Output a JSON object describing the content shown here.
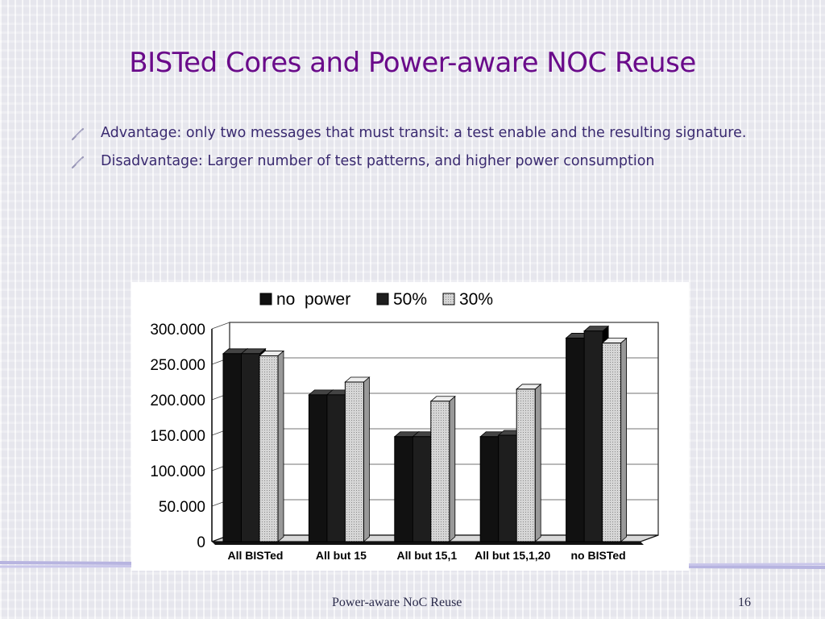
{
  "slide": {
    "title": "BISTed Cores and Power-aware NOC Reuse",
    "bullets": [
      "Advantage: only two messages that must transit: a test enable and the resulting signature.",
      "Disadvantage: Larger number of test patterns, and higher power consumption"
    ],
    "footer": {
      "center": "Power-aware NoC Reuse",
      "page": "16"
    },
    "colors": {
      "title": "#6a0b8a",
      "text": "#3a2a70",
      "rule": "#b7b4e0"
    }
  },
  "chart_data": {
    "type": "bar",
    "categories": [
      "All BISTed",
      "All but 15",
      "All but 15,1",
      "All but 15,1,20",
      "no BISTed"
    ],
    "series": [
      {
        "name": "no  power",
        "values": [
          265000,
          207000,
          148000,
          148000,
          287000
        ],
        "color": "#111111"
      },
      {
        "name": "50%",
        "values": [
          265000,
          207000,
          148000,
          150000,
          297000
        ],
        "color": "#1e1e1e"
      },
      {
        "name": "30%",
        "values": [
          262000,
          225000,
          198000,
          215000,
          280000
        ],
        "color": "#cccccc"
      }
    ],
    "yticks": [
      "300.000",
      "250.000",
      "200.000",
      "150.000",
      "100.000",
      "50.000",
      "0"
    ],
    "ylim": [
      0,
      300000
    ],
    "legend_position": "top",
    "grid": true
  }
}
